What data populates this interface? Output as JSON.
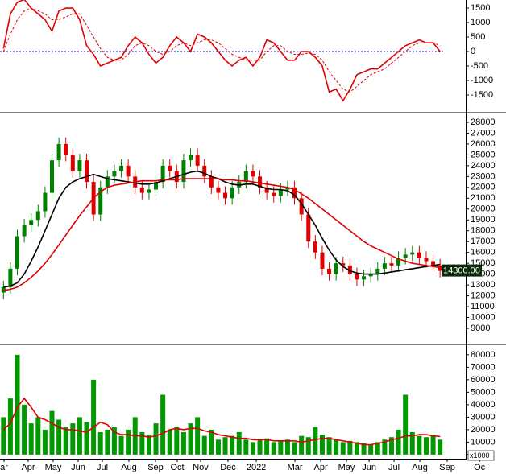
{
  "chart_data": [
    {
      "type": "line",
      "series": [
        {
          "color": "#e00000",
          "dash": false,
          "values": [
            100,
            1300,
            1700,
            1800,
            1500,
            1300,
            1100,
            700,
            1400,
            1500,
            1500,
            1100,
            200,
            -100,
            -500,
            -400,
            -300,
            -200,
            200,
            500,
            300,
            -100,
            -400,
            -200,
            200,
            500,
            300,
            0,
            600,
            500,
            300,
            0,
            -300,
            -500,
            -300,
            -200,
            -500,
            -200,
            400,
            300,
            0,
            -300,
            -300,
            0,
            0,
            -200,
            -500,
            -1400,
            -1300,
            -1700,
            -1300,
            -800,
            -700,
            -600,
            -600,
            -400,
            -200,
            0,
            200,
            300,
            400,
            300,
            300,
            0
          ]
        },
        {
          "color": "#e00000",
          "dash": true,
          "values": [
            0,
            600,
            1100,
            1400,
            1500,
            1400,
            1300,
            1100,
            1100,
            1200,
            1300,
            1300,
            900,
            500,
            100,
            -200,
            -300,
            -300,
            -100,
            200,
            300,
            200,
            0,
            -100,
            0,
            200,
            300,
            200,
            300,
            400,
            400,
            300,
            100,
            -100,
            -200,
            -300,
            -300,
            -300,
            0,
            200,
            200,
            0,
            -100,
            -100,
            -50,
            -100,
            -300,
            -700,
            -1000,
            -1300,
            -1400,
            -1200,
            -1000,
            -800,
            -700,
            -600,
            -400,
            -200,
            0,
            200,
            300,
            300,
            300,
            200
          ]
        }
      ],
      "xlim": [
        -0.5,
        66.7
      ],
      "ylim": [
        -2030,
        1780
      ],
      "yticks": [
        1500,
        1000,
        500,
        0,
        -500,
        -1000,
        -1500
      ],
      "zero_line": true,
      "zero_line_color": "#1a1acc"
    },
    {
      "type": "candlestick",
      "open": [
        12300,
        12800,
        14500,
        17500,
        18500,
        19000,
        19800,
        21500,
        24500,
        26000,
        25000,
        23500,
        24500,
        22500,
        19500,
        22000,
        23000,
        23500,
        24000,
        23000,
        22000,
        21500,
        21800,
        22500,
        24000,
        23500,
        22500,
        24500,
        25000,
        24000,
        23000,
        22000,
        21500,
        21000,
        22000,
        22500,
        23500,
        23000,
        22000,
        21500,
        21200,
        21800,
        22000,
        21000,
        19500,
        17000,
        16000,
        14500,
        14000,
        15000,
        14800,
        14000,
        13500,
        13800,
        14000,
        14500,
        15000,
        14800,
        15500,
        15800,
        16000,
        15500,
        15200,
        14800
      ],
      "high": [
        13400,
        15100,
        18100,
        19100,
        19600,
        20400,
        22100,
        25100,
        26600,
        26600,
        25600,
        25100,
        25100,
        23100,
        22600,
        23600,
        24100,
        24600,
        24600,
        23600,
        22600,
        22400,
        23100,
        24600,
        24600,
        24100,
        25100,
        25600,
        25600,
        24600,
        23600,
        22600,
        22100,
        22600,
        23100,
        24100,
        24100,
        23600,
        22600,
        22100,
        22400,
        22600,
        22600,
        21600,
        20100,
        17600,
        16600,
        15100,
        15600,
        15600,
        15400,
        14600,
        14400,
        14600,
        15100,
        15600,
        15600,
        16100,
        16400,
        16600,
        16600,
        16100,
        15800,
        15400
      ],
      "low": [
        11700,
        12200,
        13900,
        16900,
        17900,
        18400,
        19200,
        20900,
        23900,
        24400,
        22900,
        22900,
        21900,
        18900,
        18900,
        21400,
        22400,
        22900,
        22400,
        21400,
        20900,
        20900,
        21200,
        21900,
        22900,
        21900,
        21900,
        23900,
        23400,
        22400,
        21400,
        20900,
        20400,
        20400,
        21400,
        21900,
        22400,
        21400,
        20900,
        20600,
        20600,
        21200,
        20400,
        18900,
        16400,
        15400,
        13900,
        13400,
        13400,
        14200,
        13400,
        12900,
        12900,
        13200,
        13400,
        13900,
        14200,
        14200,
        14900,
        15200,
        14900,
        14600,
        14200,
        13700
      ],
      "close": [
        12800,
        14500,
        17500,
        18500,
        19000,
        19800,
        21500,
        24500,
        26000,
        25000,
        23500,
        24500,
        22500,
        19500,
        22000,
        23000,
        23500,
        24000,
        23000,
        22000,
        21500,
        21800,
        22500,
        24000,
        23500,
        22500,
        24500,
        25000,
        24000,
        23000,
        22000,
        21500,
        21000,
        22000,
        22500,
        23500,
        23000,
        22000,
        21500,
        21200,
        21800,
        22000,
        21000,
        19500,
        17000,
        16000,
        14500,
        14000,
        15000,
        14800,
        14000,
        13500,
        13800,
        14000,
        14500,
        15000,
        14800,
        15500,
        15800,
        16000,
        15500,
        15200,
        14800,
        14300
      ],
      "up_color": "#008000",
      "down_color": "#e00000",
      "series": [
        {
          "color": "#000000",
          "values": [
            12800,
            12900,
            13200,
            14000,
            15200,
            16500,
            18000,
            19500,
            21000,
            22000,
            22500,
            22800,
            23000,
            23200,
            23000,
            22800,
            22700,
            22600,
            22500,
            22400,
            22300,
            22300,
            22400,
            22600,
            22800,
            23000,
            23200,
            23400,
            23500,
            23300,
            23000,
            22800,
            22500,
            22300,
            22200,
            22300,
            22300,
            22100,
            21900,
            21800,
            21800,
            21700,
            21300,
            20500,
            19500,
            18500,
            17300,
            16200,
            15300,
            14700,
            14300,
            14100,
            14000,
            14000,
            14000,
            14100,
            14200,
            14300,
            14400,
            14500,
            14600,
            14700,
            14800,
            14900
          ]
        },
        {
          "color": "#e00000",
          "values": [
            12500,
            12600,
            12800,
            13200,
            13700,
            14300,
            15000,
            15800,
            16700,
            17600,
            18500,
            19400,
            20200,
            21000,
            21600,
            22000,
            22200,
            22300,
            22400,
            22500,
            22600,
            22600,
            22600,
            22700,
            22700,
            22700,
            22800,
            22800,
            22800,
            22800,
            22800,
            22800,
            22700,
            22700,
            22600,
            22600,
            22500,
            22400,
            22300,
            22200,
            22100,
            22000,
            21800,
            21400,
            21000,
            20500,
            20000,
            19500,
            19000,
            18500,
            18000,
            17500,
            17000,
            16600,
            16300,
            16000,
            15700,
            15400,
            15200,
            15000,
            14900,
            14800,
            14700,
            14600
          ]
        }
      ],
      "xlim": [
        -0.5,
        66.7
      ],
      "ylim": [
        7740,
        28740
      ],
      "yticks": [
        28000,
        27000,
        26000,
        25000,
        24000,
        23000,
        22000,
        21000,
        20000,
        19000,
        18000,
        17000,
        16000,
        15000,
        14000,
        13000,
        12000,
        11000,
        10000,
        9000
      ],
      "last_label": "14300.00"
    },
    {
      "type": "bar",
      "values": [
        30000,
        45000,
        80000,
        40000,
        25000,
        30000,
        20000,
        35000,
        28000,
        22000,
        25000,
        30000,
        26000,
        60000,
        18000,
        20000,
        22000,
        15000,
        20000,
        30000,
        18000,
        16000,
        25000,
        48000,
        20000,
        22000,
        18000,
        25000,
        30000,
        15000,
        20000,
        12000,
        14000,
        15000,
        18000,
        12000,
        10000,
        12000,
        13000,
        10000,
        11000,
        12000,
        10000,
        15000,
        14000,
        22000,
        16000,
        14000,
        12000,
        10000,
        11000,
        10000,
        9000,
        8000,
        10000,
        12000,
        14000,
        20000,
        48000,
        18000,
        15000,
        14000,
        16000,
        12000
      ],
      "color": "#009900",
      "series": [
        {
          "color": "#e00000",
          "values": [
            20000,
            25000,
            38000,
            45000,
            38000,
            30000,
            28000,
            25000,
            22000,
            20000,
            20000,
            19000,
            18000,
            22000,
            26000,
            24000,
            18000,
            16000,
            16000,
            15000,
            15000,
            14000,
            15000,
            17000,
            20000,
            21000,
            20000,
            21000,
            21000,
            19000,
            18000,
            16000,
            15000,
            14000,
            13000,
            13000,
            12000,
            12000,
            12000,
            11000,
            11000,
            11000,
            11000,
            10000,
            11000,
            12000,
            13000,
            13000,
            12000,
            11000,
            10000,
            9000,
            8000,
            8000,
            9000,
            10000,
            12000,
            13000,
            15000,
            15000,
            16000,
            16000,
            15000,
            14500
          ]
        }
      ],
      "xlim": [
        -0.5,
        66.7
      ],
      "ylim": [
        -2000,
        87000
      ],
      "yticks": [
        80000,
        70000,
        60000,
        50000,
        40000,
        30000,
        20000,
        10000,
        0
      ],
      "unit_label": "x1000",
      "xticks": [
        {
          "value": 0.08,
          "label": "ar"
        },
        {
          "value": 3.57,
          "label": "Apr"
        },
        {
          "value": 7.17,
          "label": "May"
        },
        {
          "value": 10.78,
          "label": "Jun"
        },
        {
          "value": 14.27,
          "label": "Jul"
        },
        {
          "value": 18.1,
          "label": "Aug"
        },
        {
          "value": 21.94,
          "label": "Sep"
        },
        {
          "value": 25.08,
          "label": "Oct"
        },
        {
          "value": 28.45,
          "label": "Nov"
        },
        {
          "value": 32.4,
          "label": "Dec"
        },
        {
          "value": 36.48,
          "label": "2022"
        },
        {
          "value": 42.06,
          "label": "Mar"
        },
        {
          "value": 45.78,
          "label": "Apr"
        },
        {
          "value": 49.5,
          "label": "May"
        },
        {
          "value": 52.76,
          "label": "Jun"
        },
        {
          "value": 56.36,
          "label": "Jul"
        },
        {
          "value": 60.08,
          "label": "Aug"
        },
        {
          "value": 64.03,
          "label": "Sep"
        },
        {
          "value": 68.69,
          "label": "Oc"
        }
      ]
    }
  ]
}
